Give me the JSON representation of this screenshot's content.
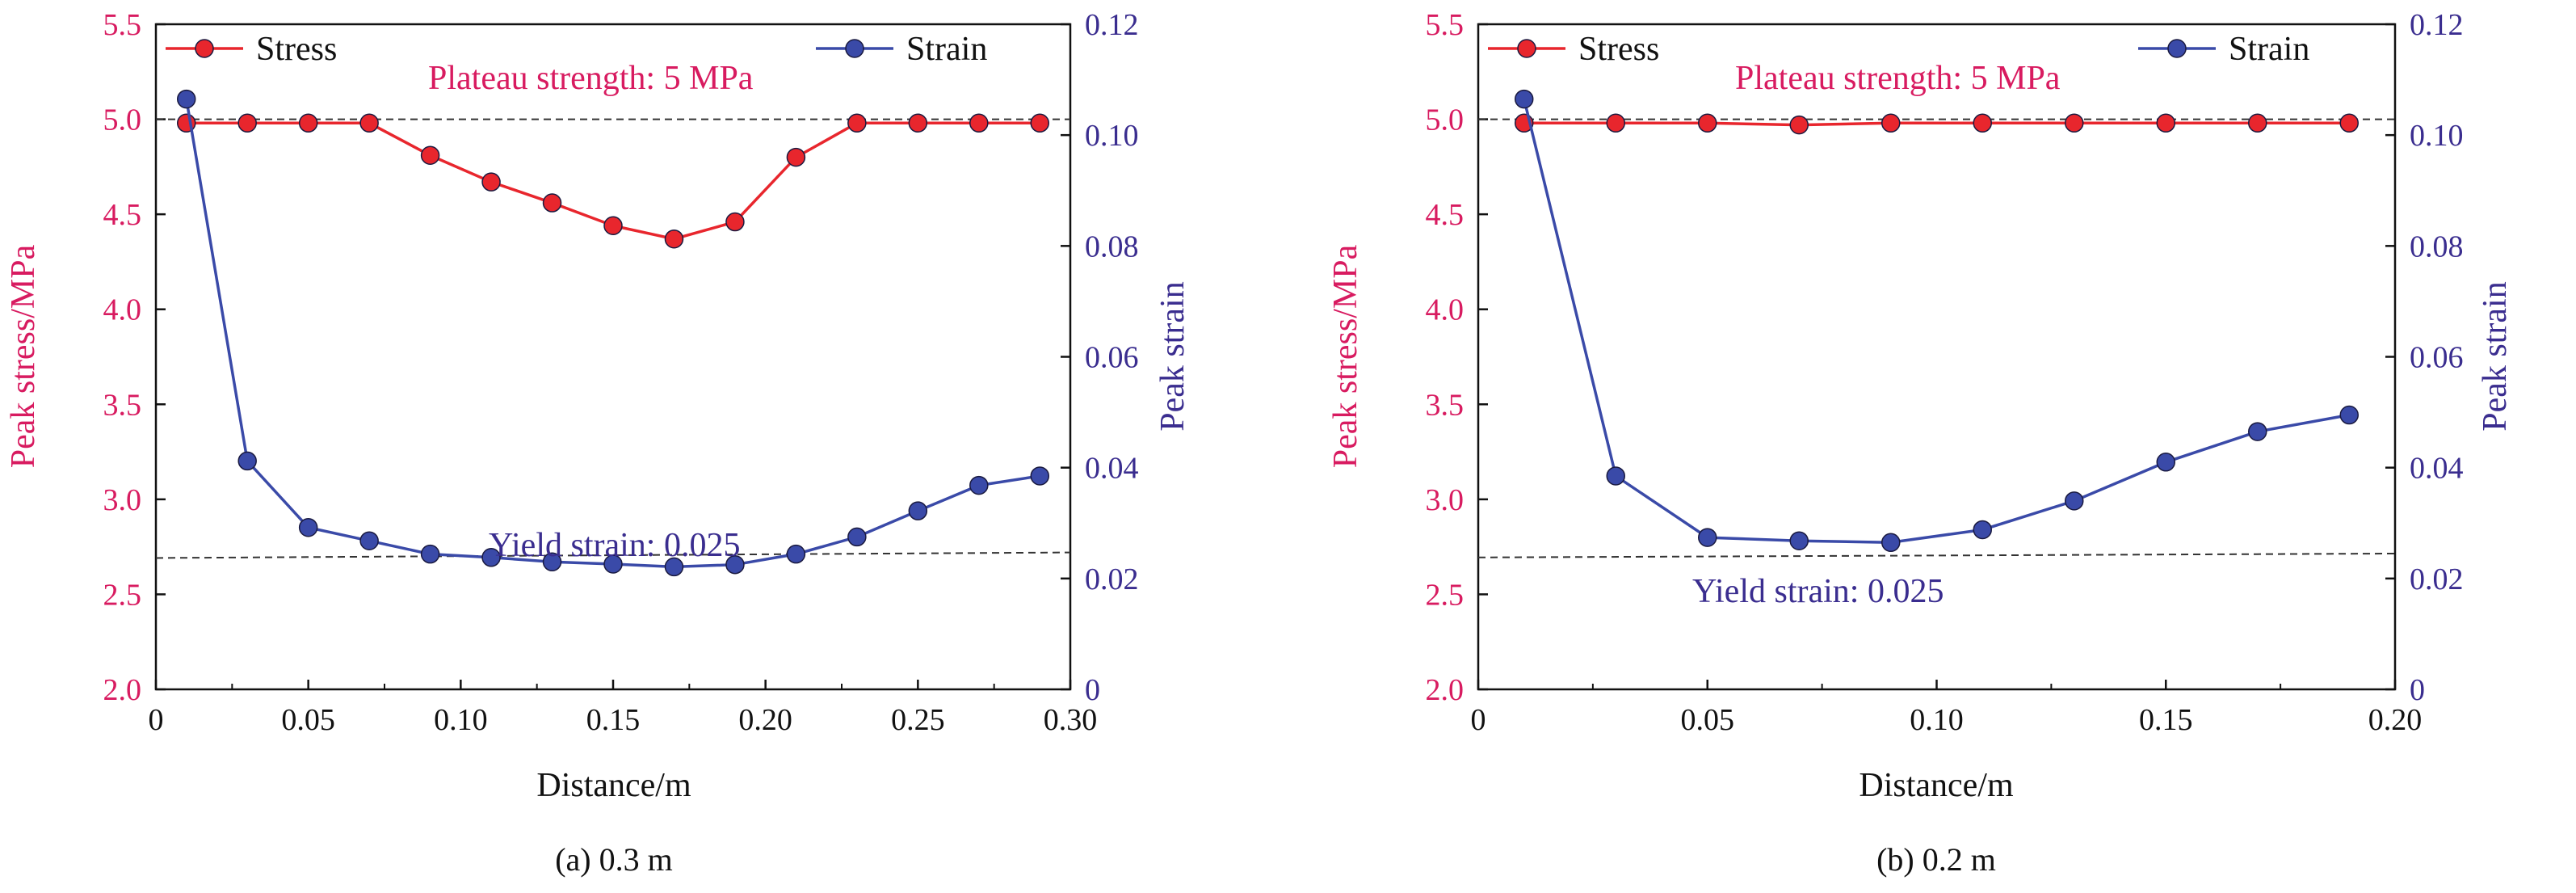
{
  "colors": {
    "stress": "#e8262d",
    "strain": "#3a4aa8",
    "left_axis": "#d81b60",
    "right_axis": "#3a2d8f",
    "ref_line": "#333333"
  },
  "chart_data": [
    {
      "type": "line",
      "caption": "(a) 0.3 m",
      "xlabel": "Distance/m",
      "ylabel_left": "Peak stress/MPa",
      "ylabel_right": "Peak strain",
      "xlim": [
        0,
        0.3
      ],
      "ylim_left": [
        2.0,
        5.5
      ],
      "ylim_right": [
        0,
        0.12
      ],
      "x_ticks": [
        "0",
        "0.05",
        "0.10",
        "0.15",
        "0.20",
        "0.25",
        "0.30"
      ],
      "y_left_ticks": [
        "2.0",
        "2.5",
        "3.0",
        "3.5",
        "4.0",
        "4.5",
        "5.0",
        "5.5"
      ],
      "y_right_ticks": [
        "0",
        "0.02",
        "0.04",
        "0.06",
        "0.08",
        "0.10",
        "0.12"
      ],
      "legend": {
        "stress": "Stress",
        "strain": "Strain"
      },
      "annotations": {
        "plateau": "Plateau strength: 5 MPa",
        "yield": "Yield strain: 0.025"
      },
      "plateau_value": 5.0,
      "yield_line": {
        "x": [
          0,
          0.3
        ],
        "y": [
          0.0237,
          0.0247
        ]
      },
      "series": [
        {
          "name": "Stress",
          "axis": "left",
          "x": [
            0.01,
            0.03,
            0.05,
            0.07,
            0.09,
            0.11,
            0.13,
            0.15,
            0.17,
            0.19,
            0.21,
            0.23,
            0.25,
            0.27,
            0.29
          ],
          "y": [
            4.98,
            4.98,
            4.98,
            4.98,
            4.81,
            4.67,
            4.56,
            4.44,
            4.37,
            4.46,
            4.8,
            4.98,
            4.98,
            4.98,
            4.98
          ]
        },
        {
          "name": "Strain",
          "axis": "right",
          "x": [
            0.01,
            0.03,
            0.05,
            0.07,
            0.09,
            0.11,
            0.13,
            0.15,
            0.17,
            0.19,
            0.21,
            0.23,
            0.25,
            0.27,
            0.29
          ],
          "y": [
            0.1065,
            0.0412,
            0.0292,
            0.0268,
            0.0244,
            0.0238,
            0.023,
            0.0226,
            0.0221,
            0.0225,
            0.0244,
            0.0275,
            0.0322,
            0.0368,
            0.0385
          ]
        }
      ]
    },
    {
      "type": "line",
      "caption": "(b) 0.2 m",
      "xlabel": "Distance/m",
      "ylabel_left": "Peak stress/MPa",
      "ylabel_right": "Peak strain",
      "xlim": [
        0,
        0.2
      ],
      "ylim_left": [
        2.0,
        5.5
      ],
      "ylim_right": [
        0,
        0.12
      ],
      "x_ticks": [
        "0",
        "0.05",
        "0.10",
        "0.15",
        "0.20"
      ],
      "y_left_ticks": [
        "2.0",
        "2.5",
        "3.0",
        "3.5",
        "4.0",
        "4.5",
        "5.0",
        "5.5"
      ],
      "y_right_ticks": [
        "0",
        "0.02",
        "0.04",
        "0.06",
        "0.08",
        "0.10",
        "0.12"
      ],
      "legend": {
        "stress": "Stress",
        "strain": "Strain"
      },
      "annotations": {
        "plateau": "Plateau strength:  5 MPa",
        "yield": "Yield strain: 0.025"
      },
      "plateau_value": 5.0,
      "yield_line": {
        "x": [
          0,
          0.2
        ],
        "y": [
          0.0238,
          0.0245
        ]
      },
      "series": [
        {
          "name": "Stress",
          "axis": "left",
          "x": [
            0.01,
            0.03,
            0.05,
            0.07,
            0.09,
            0.11,
            0.13,
            0.15,
            0.17,
            0.19
          ],
          "y": [
            4.98,
            4.98,
            4.98,
            4.97,
            4.98,
            4.98,
            4.98,
            4.98,
            4.98,
            4.98
          ]
        },
        {
          "name": "Strain",
          "axis": "right",
          "x": [
            0.01,
            0.03,
            0.05,
            0.07,
            0.09,
            0.11,
            0.13,
            0.15,
            0.17,
            0.19
          ],
          "y": [
            0.1065,
            0.0385,
            0.0274,
            0.0268,
            0.0265,
            0.0288,
            0.034,
            0.041,
            0.0465,
            0.0495
          ]
        }
      ]
    }
  ]
}
